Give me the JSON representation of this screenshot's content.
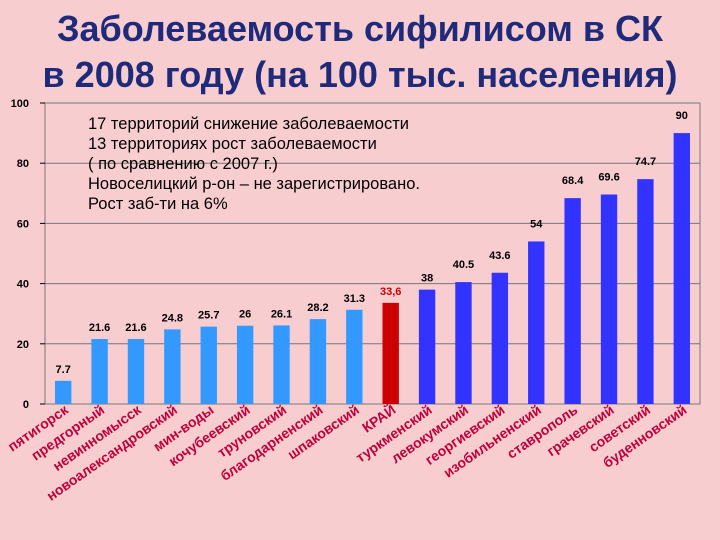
{
  "title_line1": "Заболеваемость сифилисом в СК",
  "title_line2": "в 2008 году (на 100 тыс. населения)",
  "note": [
    "17 территорий снижение заболеваемости",
    "13 территориях рост заболеваемости",
    "( по сравнению с 2007 г.)",
    "Новоселицкий р-он – не зарегистрировано.",
    "Рост заб-ти на 6%"
  ],
  "colors": {
    "background": "#f7cdd0",
    "light_blue": "#3399ff",
    "dark_blue": "#3333ff",
    "highlight": "#cc0000",
    "highlight_label": "#cc0000",
    "title": "#1f2a7a",
    "category_label": "#c0003c"
  },
  "chart_data": {
    "type": "bar",
    "title": "Заболеваемость сифилисом в СК в 2008 году (на 100 тыс. населения)",
    "ylim": [
      0,
      100
    ],
    "yticks": [
      "0",
      "20",
      "40",
      "60",
      "80",
      "100"
    ],
    "grid": true,
    "categories": [
      "пятигорск",
      "предгорный",
      "невинномысск",
      "новоалександровский",
      "мин-воды",
      "кочубеевский",
      "труновский",
      "благодарненский",
      "шпаковский",
      "КРАЙ",
      "туркменский",
      "левокумский",
      "георгиевский",
      "изобильненский",
      "ставрополь",
      "грачевский",
      "советский",
      "буденновский"
    ],
    "values": [
      7.7,
      21.6,
      21.6,
      24.8,
      25.7,
      26,
      26.1,
      28.2,
      31.3,
      33.6,
      38,
      40.5,
      43.6,
      54,
      68.4,
      69.6,
      74.7,
      90
    ],
    "value_labels": [
      "7.7",
      "21.6",
      "21.6",
      "24.8",
      "25.7",
      "26",
      "26.1",
      "28.2",
      "31.3",
      "33,6",
      "38",
      "40.5",
      "43.6",
      "54",
      "68.4",
      "69.6",
      "74.7",
      "90"
    ],
    "bar_groups": [
      "light",
      "light",
      "light",
      "light",
      "light",
      "light",
      "light",
      "light",
      "light",
      "highlight",
      "dark",
      "dark",
      "dark",
      "dark",
      "dark",
      "dark",
      "dark",
      "dark"
    ]
  }
}
